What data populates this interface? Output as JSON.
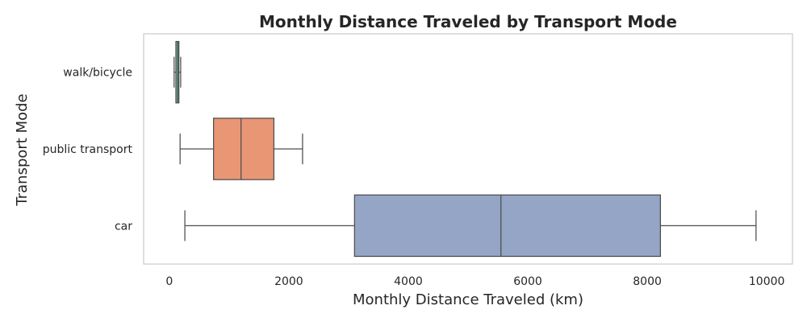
{
  "chart_data": {
    "type": "boxplot",
    "orientation": "horizontal",
    "title": "Monthly Distance Traveled by Transport Mode",
    "xlabel": "Monthly Distance Traveled (km)",
    "ylabel": "Transport Mode",
    "xlim": [
      -430,
      10430
    ],
    "xticks": [
      0,
      2000,
      4000,
      6000,
      8000,
      10000
    ],
    "grid": false,
    "categories": [
      "walk/bicycle",
      "public transport",
      "car"
    ],
    "boxes": [
      {
        "category": "walk/bicycle",
        "whisker_low": 80,
        "q1": 110,
        "median": 140,
        "q3": 160,
        "whisker_high": 190,
        "color": "#66c2a5"
      },
      {
        "category": "public transport",
        "whisker_low": 180,
        "q1": 740,
        "median": 1200,
        "q3": 1750,
        "whisker_high": 2230,
        "color": "#e99675"
      },
      {
        "category": "car",
        "whisker_low": 260,
        "q1": 3100,
        "median": 5550,
        "q3": 8220,
        "whisker_high": 9820,
        "color": "#95a5c6"
      }
    ],
    "colors": {
      "line": "#4d4d4d",
      "frame": "#cccccc"
    }
  }
}
